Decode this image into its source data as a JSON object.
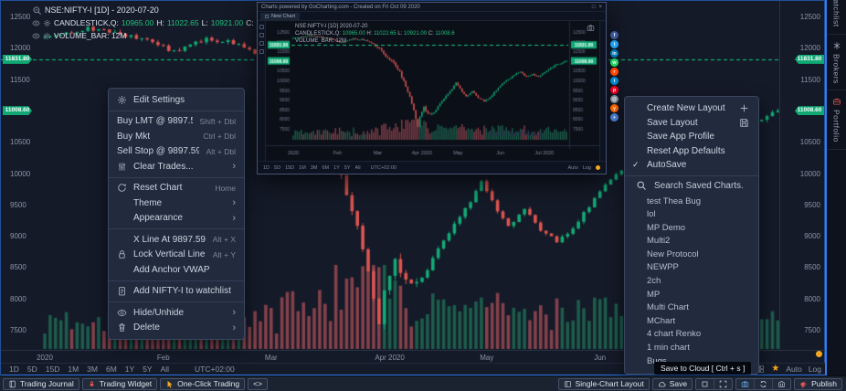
{
  "colors": {
    "bg": "#10141f",
    "chart_bg": "#141a28",
    "panel": "#212b3d",
    "up": "#13aa74",
    "down": "#dd5550",
    "vol_up": "#1d5c4b",
    "vol_down": "#84414a",
    "price_line": "#10c987",
    "pill": "#10a974",
    "accent": "#2f7cf6",
    "axis_text": "#8b95a8",
    "green_text": "#21c17d",
    "orange": "#f6a821"
  },
  "legend": {
    "symbol": "NSE:NIFTY-I [1D] - 2020-07-20",
    "study": "CANDLESTICK,Q:",
    "o": "10965.00",
    "h_label": "H:",
    "h": "11022.65",
    "l_label": "L:",
    "l": "10921.00",
    "c_label": "C:",
    "c": "11008.6",
    "volume": "VOLUME_BAR: 12M"
  },
  "chart_data": {
    "type": "candlestick",
    "symbol": "NSE:NIFTY-I",
    "interval": "1D",
    "session_date": "2020-07-20",
    "ohlc": {
      "open": 10965.0,
      "high": 11022.65,
      "low": 10921.0,
      "close": 11008.6
    },
    "ylim": [
      7500,
      12500
    ],
    "y_ticks": [
      "12500",
      "12000",
      "11500",
      "10500",
      "10000",
      "9500",
      "9000",
      "8500",
      "8000",
      "7500"
    ],
    "mini_y_ticks": [
      "12500",
      "12000",
      "11500",
      "11000",
      "10500",
      "10000",
      "9500",
      "9000",
      "8500",
      "8000",
      "7500"
    ],
    "price_line": 11831.8,
    "price_line_label": "11831.80",
    "last_price": 11008.6,
    "last_price_label": "11008.60",
    "total_days": 137,
    "main_x_tick_count": 6,
    "x_ticks": [
      {
        "label": "2020",
        "day": 0
      },
      {
        "label": "Feb",
        "day": 22
      },
      {
        "label": "Mar",
        "day": 42
      },
      {
        "label": "Apr 2020",
        "day": 64
      },
      {
        "label": "May",
        "day": 82
      },
      {
        "label": "Jun",
        "day": 103
      },
      {
        "label": "Jul 2020",
        "day": 125
      }
    ],
    "close_anchors": [
      [
        0,
        12180
      ],
      [
        8,
        12330
      ],
      [
        14,
        12240
      ],
      [
        20,
        12100
      ],
      [
        24,
        11950
      ],
      [
        30,
        12160
      ],
      [
        36,
        12080
      ],
      [
        40,
        11880
      ],
      [
        43,
        11610
      ],
      [
        46,
        11270
      ],
      [
        50,
        10910
      ],
      [
        53,
        10430
      ],
      [
        56,
        9690
      ],
      [
        58,
        9140
      ],
      [
        60,
        8470
      ],
      [
        62,
        7610
      ],
      [
        63,
        8090
      ],
      [
        65,
        8660
      ],
      [
        67,
        8280
      ],
      [
        70,
        8320
      ],
      [
        73,
        8790
      ],
      [
        76,
        9180
      ],
      [
        79,
        9560
      ],
      [
        81,
        9860
      ],
      [
        83,
        9560
      ],
      [
        86,
        9170
      ],
      [
        89,
        9430
      ],
      [
        92,
        9110
      ],
      [
        95,
        8920
      ],
      [
        98,
        9150
      ],
      [
        101,
        9490
      ],
      [
        104,
        9830
      ],
      [
        107,
        10060
      ],
      [
        110,
        10270
      ],
      [
        113,
        10460
      ],
      [
        116,
        10180
      ],
      [
        119,
        10320
      ],
      [
        122,
        10180
      ],
      [
        125,
        10390
      ],
      [
        128,
        10630
      ],
      [
        131,
        10820
      ],
      [
        134,
        10930
      ],
      [
        136,
        11008.6
      ]
    ]
  },
  "context_menu": {
    "items": [
      {
        "label": "Edit Settings",
        "icon": "gear",
        "divider_after": true
      },
      {
        "label": "Buy LMT @ 9897.59",
        "shortcut": "Shift + Dbl",
        "flush": true
      },
      {
        "label": "Buy Mkt",
        "shortcut": "Ctrl + Dbl",
        "flush": true
      },
      {
        "label": "Sell Stop @ 9897.59",
        "shortcut": "Alt + Dbl",
        "flush": true
      },
      {
        "label": "Clear Trades...",
        "icon": "sliders",
        "submenu": true,
        "divider_after": true
      },
      {
        "label": "Reset Chart",
        "icon": "reset",
        "shortcut": "Home"
      },
      {
        "label": "Theme",
        "submenu": true
      },
      {
        "label": "Appearance",
        "submenu": true,
        "divider_after": true
      },
      {
        "label": "X Line At 9897.59",
        "shortcut": "Alt + X"
      },
      {
        "label": "Lock Vertical Line",
        "icon": "lock",
        "shortcut": "Alt + Y"
      },
      {
        "label": "Add Anchor VWAP",
        "divider_after": true
      },
      {
        "label": "Add NIFTY-I to watchlist",
        "icon": "clipboard",
        "divider_after": true
      },
      {
        "label": "Hide/Unhide",
        "icon": "eye",
        "submenu": true
      },
      {
        "label": "Delete",
        "icon": "trash",
        "submenu": true
      }
    ]
  },
  "layout_menu": {
    "items": [
      {
        "label": "Create New Layout",
        "right_icon": "plus"
      },
      {
        "label": "Save Layout",
        "right_icon": "floppy"
      },
      {
        "label": "Save App Profile"
      },
      {
        "label": "Reset App Defaults"
      },
      {
        "label": "AutoSave",
        "checked": true
      }
    ]
  },
  "saved_charts": {
    "search_placeholder": "Search Saved Charts.",
    "items": [
      "test Thea Bug",
      "lol",
      "MP Demo",
      "Multi2",
      "New Protocol",
      "NEWPP",
      "2ch",
      "MP",
      "Multi Chart",
      "MChart",
      "4 chart Renko",
      "1 min chart",
      "Bugs"
    ]
  },
  "overlay_window": {
    "title": "Charts powered by GoCharting.com - Created on Fri Oct 09 2020",
    "tab": "New Chart",
    "watermark": "GoCharting",
    "expand_glyph": "□",
    "close_glyph": "×"
  },
  "social_share": [
    {
      "name": "facebook",
      "color": "#3b5998",
      "glyph": "f"
    },
    {
      "name": "twitter",
      "color": "#1da1f2",
      "glyph": "t"
    },
    {
      "name": "linkedin",
      "color": "#0077b5",
      "glyph": "in"
    },
    {
      "name": "whatsapp",
      "color": "#25d366",
      "glyph": "w"
    },
    {
      "name": "reddit",
      "color": "#ff4500",
      "glyph": "r"
    },
    {
      "name": "telegram",
      "color": "#0088cc",
      "glyph": "t"
    },
    {
      "name": "pinterest",
      "color": "#e60023",
      "glyph": "p"
    },
    {
      "name": "email",
      "color": "#7f8c9b",
      "glyph": "@"
    },
    {
      "name": "hacker-news",
      "color": "#ff6600",
      "glyph": "y"
    },
    {
      "name": "share-more",
      "color": "#4a7fd4",
      "glyph": "+"
    }
  ],
  "timeframe_bar": {
    "timeframes": [
      "1D",
      "5D",
      "15D",
      "1M",
      "3M",
      "6M",
      "1Y",
      "5Y",
      "All"
    ],
    "timezone": "UTC+02:00",
    "scale_buttons": [
      "Auto",
      "Log"
    ]
  },
  "tooltip": "Save to Cloud [ Ctrl + s ]",
  "bottom_bar": {
    "left": [
      {
        "name": "trading-journal",
        "label": "Trading Journal",
        "icon": "journal"
      },
      {
        "name": "trading-widget",
        "label": "Trading Widget",
        "icon": "rocket",
        "icon_color": "#e8574f"
      },
      {
        "name": "one-click-trading",
        "label": "One-Click Trading",
        "icon": "pointer",
        "icon_color": "#f6a821"
      },
      {
        "name": "code-view",
        "label": "<>"
      }
    ],
    "right": [
      {
        "name": "single-chart-layout",
        "label": "Single-Chart Layout",
        "icon": "layout"
      },
      {
        "name": "save",
        "label": "Save",
        "icon": "cloud"
      },
      {
        "group": [
          {
            "name": "maximize",
            "icon": "square"
          },
          {
            "name": "fullscreen",
            "icon": "expand"
          }
        ]
      },
      {
        "group": [
          {
            "name": "screenshot",
            "icon": "camera",
            "icon_color": "#6ab0f3"
          },
          {
            "name": "refresh-layout",
            "icon": "refresh"
          },
          {
            "name": "exchange",
            "icon": "bank"
          }
        ]
      },
      {
        "name": "publish",
        "label": "Publish",
        "icon": "megaphone",
        "icon_color": "#e8574f"
      }
    ]
  },
  "side_tabs": [
    {
      "label": "Watchlist",
      "icon": "list"
    },
    {
      "label": "Brokers",
      "icon": "wrench"
    },
    {
      "label": "Portfolio",
      "icon": "briefcase",
      "icon_color": "#d95555"
    }
  ]
}
